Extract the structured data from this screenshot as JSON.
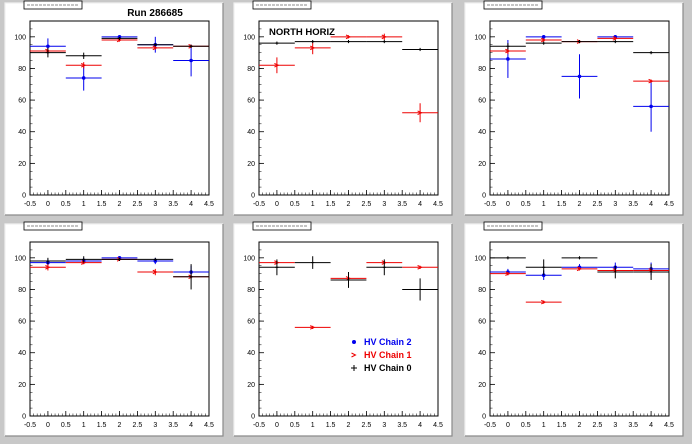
{
  "page": {
    "run_label": "Run 286685",
    "colors": {
      "canvas_bg": "#c8c8c8",
      "pad_bg": "#ffffff",
      "frame": "#000000"
    }
  },
  "legend": {
    "entries": [
      {
        "label": "HV Chain 2",
        "color": "#0000ee",
        "marker": "dot"
      },
      {
        "label": "HV Chain 1",
        "color": "#ee0000",
        "marker": "arrow"
      },
      {
        "label": "HV Chain 0",
        "color": "#000000",
        "marker": "cross"
      }
    ]
  },
  "chart_data": [
    {
      "type": "scatter",
      "title": "",
      "annotation": "",
      "xlabel": "",
      "ylabel": "",
      "xlim": [
        -0.5,
        4.5
      ],
      "ylim": [
        0,
        110
      ],
      "xticks": [
        -0.5,
        0,
        0.5,
        1,
        1.5,
        2,
        2.5,
        3,
        3.5,
        4,
        4.5
      ],
      "yticks": [
        0,
        20,
        40,
        60,
        80,
        100
      ],
      "series": [
        {
          "color": "#0000ee",
          "points": [
            [
              0,
              94,
              5
            ],
            [
              1,
              74,
              8
            ],
            [
              2,
              100,
              1
            ],
            [
              3,
              95,
              5
            ],
            [
              4,
              85,
              10
            ]
          ]
        },
        {
          "color": "#ee0000",
          "points": [
            [
              0,
              91,
              2
            ],
            [
              1,
              82,
              2
            ],
            [
              2,
              98,
              1
            ],
            [
              3,
              93,
              1
            ],
            [
              4,
              94,
              1
            ]
          ]
        },
        {
          "color": "#000000",
          "points": [
            [
              0,
              90,
              3
            ],
            [
              1,
              88,
              2
            ],
            [
              2,
              99,
              1
            ],
            [
              3,
              95,
              1
            ],
            [
              4,
              94,
              1
            ]
          ]
        }
      ]
    },
    {
      "type": "scatter",
      "title": "",
      "annotation": "NORTH HORIZ",
      "xlabel": "",
      "ylabel": "",
      "xlim": [
        -0.5,
        4.5
      ],
      "ylim": [
        0,
        110
      ],
      "xticks": [
        -0.5,
        0,
        0.5,
        1,
        1.5,
        2,
        2.5,
        3,
        3.5,
        4,
        4.5
      ],
      "yticks": [
        0,
        20,
        40,
        60,
        80,
        100
      ],
      "series": [
        {
          "color": "#ee0000",
          "points": [
            [
              0,
              82,
              5
            ],
            [
              1,
              93,
              4
            ],
            [
              2,
              100,
              1
            ],
            [
              3,
              100,
              2
            ],
            [
              4,
              52,
              6
            ]
          ]
        },
        {
          "color": "#000000",
          "points": [
            [
              0,
              96,
              1
            ],
            [
              1,
              97,
              1
            ],
            [
              2,
              97,
              1
            ],
            [
              3,
              97,
              1
            ],
            [
              4,
              92,
              1
            ]
          ]
        }
      ]
    },
    {
      "type": "scatter",
      "title": "",
      "annotation": "",
      "xlabel": "",
      "ylabel": "",
      "xlim": [
        -0.5,
        4.5
      ],
      "ylim": [
        0,
        110
      ],
      "xticks": [
        -0.5,
        0,
        0.5,
        1,
        1.5,
        2,
        2.5,
        3,
        3.5,
        4,
        4.5
      ],
      "yticks": [
        0,
        20,
        40,
        60,
        80,
        100
      ],
      "series": [
        {
          "color": "#0000ee",
          "points": [
            [
              0,
              86,
              12
            ],
            [
              1,
              100,
              1
            ],
            [
              2,
              75,
              14
            ],
            [
              3,
              100,
              1
            ],
            [
              4,
              56,
              16
            ]
          ]
        },
        {
          "color": "#ee0000",
          "points": [
            [
              0,
              91,
              2
            ],
            [
              1,
              98,
              1
            ],
            [
              2,
              97,
              1
            ],
            [
              3,
              99,
              1
            ],
            [
              4,
              72,
              1
            ]
          ]
        },
        {
          "color": "#000000",
          "points": [
            [
              0,
              94,
              2
            ],
            [
              1,
              96,
              1
            ],
            [
              2,
              97,
              1
            ],
            [
              3,
              97,
              1
            ],
            [
              4,
              90,
              1
            ]
          ]
        }
      ]
    },
    {
      "type": "scatter",
      "title": "",
      "annotation": "",
      "xlabel": "",
      "ylabel": "",
      "xlim": [
        -0.5,
        4.5
      ],
      "ylim": [
        0,
        110
      ],
      "xticks": [
        -0.5,
        0,
        0.5,
        1,
        1.5,
        2,
        2.5,
        3,
        3.5,
        4,
        4.5
      ],
      "yticks": [
        0,
        20,
        40,
        60,
        80,
        100
      ],
      "series": [
        {
          "color": "#0000ee",
          "points": [
            [
              0,
              97,
              2
            ],
            [
              1,
              98,
              2
            ],
            [
              2,
              100,
              1
            ],
            [
              3,
              98,
              2
            ],
            [
              4,
              91,
              4
            ]
          ]
        },
        {
          "color": "#ee0000",
          "points": [
            [
              0,
              94,
              2
            ],
            [
              1,
              97,
              1
            ],
            [
              2,
              99,
              1
            ],
            [
              3,
              91,
              2
            ],
            [
              4,
              88,
              1
            ]
          ]
        },
        {
          "color": "#000000",
          "points": [
            [
              0,
              98,
              2
            ],
            [
              1,
              99,
              2
            ],
            [
              2,
              99,
              1
            ],
            [
              3,
              99,
              1
            ],
            [
              4,
              88,
              8
            ]
          ]
        }
      ]
    },
    {
      "type": "scatter",
      "title": "",
      "annotation": "",
      "xlabel": "",
      "ylabel": "",
      "xlim": [
        -0.5,
        4.5
      ],
      "ylim": [
        0,
        110
      ],
      "xticks": [
        -0.5,
        0,
        0.5,
        1,
        1.5,
        2,
        2.5,
        3,
        3.5,
        4,
        4.5
      ],
      "yticks": [
        0,
        20,
        40,
        60,
        80,
        100
      ],
      "series": [
        {
          "color": "#ee0000",
          "points": [
            [
              0,
              97,
              1
            ],
            [
              1,
              56,
              1
            ],
            [
              2,
              87,
              2
            ],
            [
              3,
              97,
              1
            ],
            [
              4,
              94,
              1
            ]
          ]
        },
        {
          "color": "#000000",
          "points": [
            [
              0,
              94,
              5
            ],
            [
              1,
              97,
              4
            ],
            [
              2,
              86,
              5
            ],
            [
              3,
              94,
              5
            ],
            [
              4,
              80,
              7
            ]
          ]
        }
      ]
    },
    {
      "type": "scatter",
      "title": "",
      "annotation": "",
      "xlabel": "",
      "ylabel": "",
      "xlim": [
        -0.5,
        4.5
      ],
      "ylim": [
        0,
        110
      ],
      "xticks": [
        -0.5,
        0,
        0.5,
        1,
        1.5,
        2,
        2.5,
        3,
        3.5,
        4,
        4.5
      ],
      "yticks": [
        0,
        20,
        40,
        60,
        80,
        100
      ],
      "series": [
        {
          "color": "#0000ee",
          "points": [
            [
              0,
              91,
              2
            ],
            [
              1,
              89,
              3
            ],
            [
              2,
              94,
              2
            ],
            [
              3,
              94,
              3
            ],
            [
              4,
              93,
              4
            ]
          ]
        },
        {
          "color": "#ee0000",
          "points": [
            [
              0,
              90,
              1
            ],
            [
              1,
              72,
              1
            ],
            [
              2,
              93,
              1
            ],
            [
              3,
              92,
              1
            ],
            [
              4,
              92,
              1
            ]
          ]
        },
        {
          "color": "#000000",
          "points": [
            [
              0,
              100,
              1
            ],
            [
              1,
              94,
              5
            ],
            [
              2,
              100,
              1
            ],
            [
              3,
              91,
              4
            ],
            [
              4,
              91,
              5
            ]
          ]
        }
      ]
    }
  ]
}
